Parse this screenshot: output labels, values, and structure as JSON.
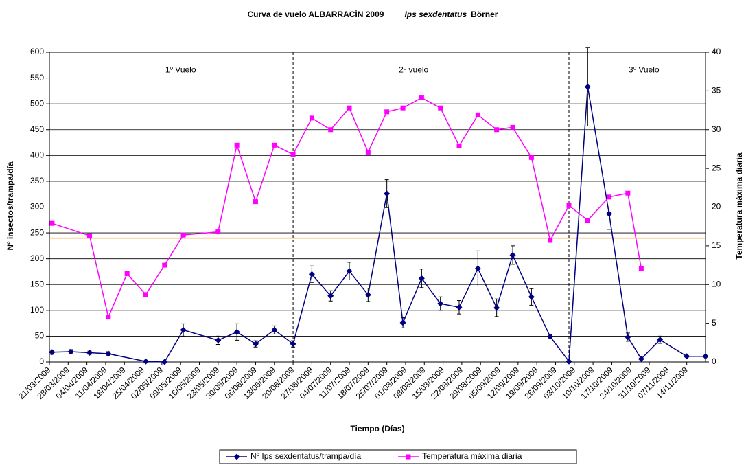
{
  "chart_data": {
    "type": "line",
    "title": "Curva de vuelo ALBARRACÍN 2009",
    "title_species": "Ips sexdentatus",
    "title_author": "Börner",
    "xlabel": "Tiempo (Días)",
    "ylabel": "Nº insectos/trampa/día",
    "y2label": "Temperatura máxima diaria",
    "xlim": [
      "21/03/2009",
      "21/11/2009"
    ],
    "xticks": [
      "21/03/2009",
      "28/03/2009",
      "04/04/2009",
      "11/04/2009",
      "18/04/2009",
      "25/04/2009",
      "02/05/2009",
      "09/05/2009",
      "16/05/2009",
      "23/05/2009",
      "30/05/2009",
      "06/06/2009",
      "13/06/2009",
      "20/06/2009",
      "27/06/2009",
      "04/07/2009",
      "11/07/2009",
      "18/07/2009",
      "25/07/2009",
      "01/08/2009",
      "08/08/2009",
      "15/08/2009",
      "22/08/2009",
      "29/08/2009",
      "05/09/2009",
      "12/09/2009",
      "19/09/2009",
      "26/09/2009",
      "03/10/2009",
      "10/10/2009",
      "17/10/2009",
      "24/10/2009",
      "31/10/2009",
      "07/11/2009",
      "14/11/2009"
    ],
    "ylim": [
      0,
      600
    ],
    "yticks": [
      0,
      50,
      100,
      150,
      200,
      250,
      300,
      350,
      400,
      450,
      500,
      550,
      600
    ],
    "y2lim": [
      0,
      40
    ],
    "y2ticks": [
      0,
      5,
      10,
      15,
      20,
      25,
      30,
      35,
      40
    ],
    "grid": true,
    "legend": "bottom",
    "series": [
      {
        "name": "Nº Ips sexdentatus/trampa/día",
        "color": "#000080",
        "marker": "diamond",
        "x": [
          "22/03/2009",
          "29/03/2009",
          "05/04/2009",
          "12/04/2009",
          "26/04/2009",
          "03/05/2009",
          "10/05/2009",
          "23/05/2009",
          "30/05/2009",
          "06/06/2009",
          "13/06/2009",
          "20/06/2009",
          "27/06/2009",
          "04/07/2009",
          "11/07/2009",
          "18/07/2009",
          "25/07/2009",
          "31/07/2009",
          "07/08/2009",
          "14/08/2009",
          "21/08/2009",
          "28/08/2009",
          "04/09/2009",
          "10/09/2009",
          "17/09/2009",
          "24/09/2009",
          "01/10/2009",
          "08/10/2009",
          "16/10/2009",
          "23/10/2009",
          "28/10/2009",
          "04/11/2009",
          "14/11/2009",
          "21/11/2009"
        ],
        "values": [
          19,
          20,
          18,
          16,
          1,
          0,
          62,
          42,
          58,
          35,
          62,
          35,
          170,
          128,
          176,
          130,
          326,
          76,
          162,
          113,
          106,
          181,
          105,
          207,
          126,
          49,
          1,
          533,
          287,
          48,
          6,
          43,
          11,
          11
        ],
        "errors": [
          4,
          4,
          3,
          4,
          1,
          0,
          12,
          8,
          16,
          6,
          8,
          6,
          16,
          10,
          17,
          13,
          27,
          10,
          18,
          13,
          13,
          34,
          17,
          18,
          16,
          4,
          0,
          76,
          30,
          8,
          0,
          7,
          0,
          0
        ]
      },
      {
        "name": "Temperatura máxima diaria",
        "color": "#ff00ff",
        "marker": "square",
        "axis": "y2",
        "x": [
          "22/03/2009",
          "05/04/2009",
          "12/04/2009",
          "19/04/2009",
          "26/04/2009",
          "03/05/2009",
          "10/05/2009",
          "23/05/2009",
          "30/05/2009",
          "06/06/2009",
          "13/06/2009",
          "20/06/2009",
          "27/06/2009",
          "04/07/2009",
          "11/07/2009",
          "18/07/2009",
          "25/07/2009",
          "31/07/2009",
          "07/08/2009",
          "14/08/2009",
          "21/08/2009",
          "28/08/2009",
          "04/09/2009",
          "10/09/2009",
          "17/09/2009",
          "24/09/2009",
          "01/10/2009",
          "08/10/2009",
          "16/10/2009",
          "23/10/2009",
          "28/10/2009"
        ],
        "values": [
          17.9,
          16.3,
          5.8,
          11.4,
          8.7,
          12.5,
          16.4,
          16.8,
          28,
          20.7,
          28,
          26.8,
          31.5,
          30,
          32.8,
          27.1,
          32.3,
          32.8,
          34.1,
          32.8,
          27.9,
          31.9,
          30,
          30.3,
          26.4,
          15.7,
          20.2,
          18.3,
          21.3,
          21.8,
          12.1
        ]
      }
    ],
    "reference_line": {
      "value": 240,
      "color": "#f0a040"
    },
    "annotations": [
      {
        "text": "1º Vuelo",
        "x": "09/05/2009",
        "y": 565
      },
      {
        "text": "2º vuelo",
        "x": "04/08/2009",
        "y": 565
      },
      {
        "text": "3º Vuelo",
        "x": "29/10/2009",
        "y": 565
      }
    ],
    "vlines": [
      "20/06/2009",
      "01/10/2009"
    ]
  }
}
